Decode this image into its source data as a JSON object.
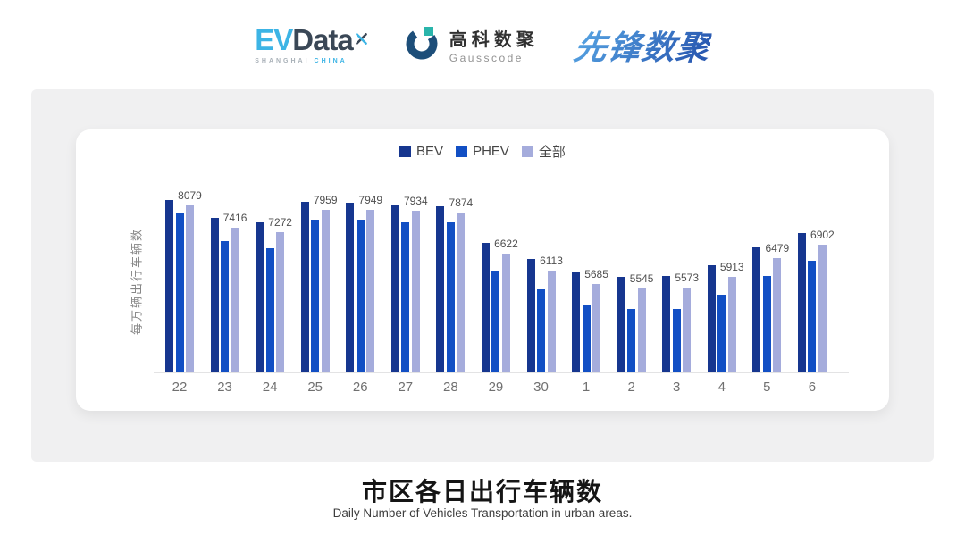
{
  "header": {
    "evdata_logo": {
      "ev": "EV",
      "data": "Data",
      "subtext_left": "SHANGHAI",
      "subtext_right": "CHINA"
    },
    "gausscode_logo": {
      "name_cn": "高科数聚",
      "name_en": "Gausscode"
    },
    "xianfeng_logo": {
      "text": "先锋数聚"
    }
  },
  "chart_data": {
    "type": "bar",
    "title": "市区各日出行车辆数",
    "subtitle": "Daily Number of Vehicles Transportation in urban areas.",
    "ylabel": "每万辆出行车辆数",
    "xlabel": "",
    "categories": [
      "22",
      "23",
      "24",
      "25",
      "26",
      "27",
      "28",
      "29",
      "30",
      "1",
      "2",
      "3",
      "4",
      "5",
      "6"
    ],
    "series": [
      {
        "name": "BEV",
        "color": "#16368f",
        "values": [
          8260,
          7700,
          7580,
          8190,
          8170,
          8100,
          8060,
          6930,
          6450,
          6070,
          5900,
          5930,
          6270,
          6810,
          7240
        ]
      },
      {
        "name": "PHEV",
        "color": "#124fc4",
        "values": [
          7850,
          6990,
          6790,
          7640,
          7640,
          7580,
          7580,
          6090,
          5520,
          5040,
          4920,
          4920,
          5360,
          5940,
          6390
        ]
      },
      {
        "name": "全部",
        "color": "#a5acdc",
        "values": [
          8079,
          7416,
          7272,
          7959,
          7949,
          7934,
          7874,
          6622,
          6113,
          5685,
          5545,
          5573,
          5913,
          6479,
          6902
        ]
      }
    ],
    "value_labels_series": "全部",
    "value_labels": [
      8079,
      7416,
      7272,
      7959,
      7949,
      7934,
      7874,
      6622,
      6113,
      5685,
      5545,
      5573,
      5913,
      6479,
      6902
    ],
    "ylim": [
      3000,
      8600
    ],
    "grid": false,
    "legend_position": "top"
  },
  "colors": {
    "page_bg": "#ffffff",
    "panel_bg": "#f0f0f1",
    "card_bg": "#ffffff",
    "axis_label": "#707070",
    "data_label": "#4f4f4f",
    "title": "#151515",
    "evdata_cyan": "#3cb4e5",
    "evdata_dark": "#3a4756",
    "gausscode_blue": "#1d4e79",
    "gausscode_teal": "#2ab5ab",
    "pioneer_blue": "#3579c8"
  }
}
